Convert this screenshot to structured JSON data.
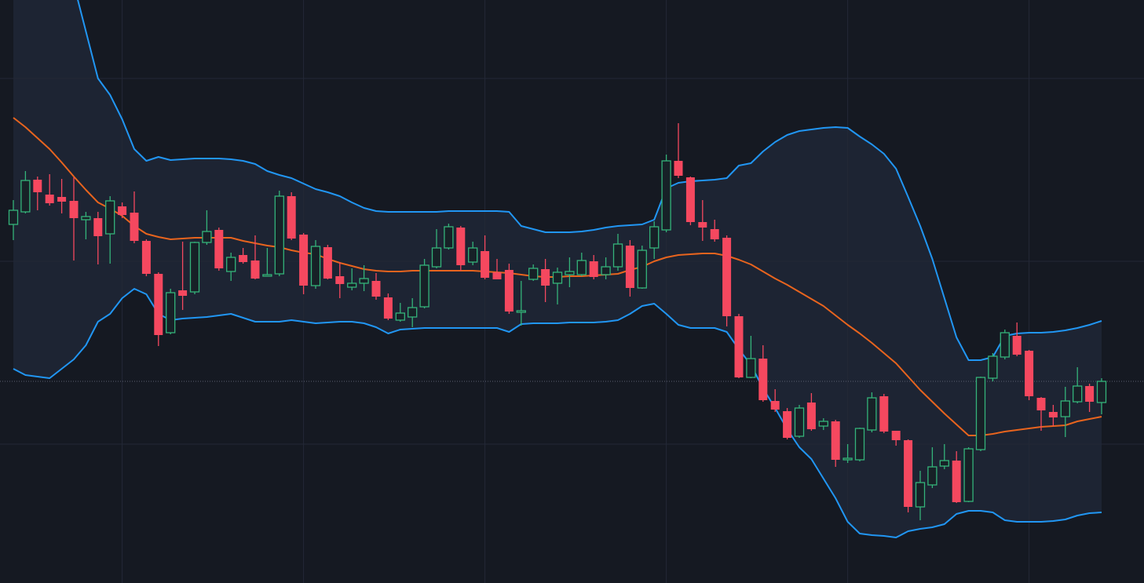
{
  "chart_data": {
    "type": "candlestick",
    "up_color": "#34b37a",
    "down_color": "#f5485f",
    "band_fill": "#1d2433",
    "grid": true,
    "ylim": [
      0,
      743
    ],
    "open": [
      457,
      473,
      514,
      495,
      492,
      487,
      463,
      465,
      445,
      480,
      472,
      436,
      394,
      319,
      373,
      371,
      434,
      450,
      397,
      418,
      411,
      391,
      394,
      493,
      444,
      379,
      428,
      391,
      377,
      382,
      385,
      364,
      335,
      339,
      352,
      403,
      427,
      453,
      409,
      423,
      396,
      399,
      345,
      387,
      400,
      382,
      393,
      393,
      410,
      393,
      403,
      430,
      376,
      427,
      450,
      538,
      517,
      460,
      451,
      440,
      340,
      262,
      286,
      232,
      219,
      187,
      230,
      200,
      206,
      157,
      157,
      195,
      238,
      194,
      182,
      97,
      125,
      149,
      156,
      104,
      170,
      261,
      288,
      315,
      296,
      236,
      218,
      212,
      231,
      251,
      230
    ],
    "high": [
      488,
      525,
      518,
      521,
      515,
      517,
      473,
      473,
      493,
      485,
      499,
      438,
      396,
      375,
      435,
      435,
      475,
      453,
      421,
      427,
      443,
      427,
      500,
      498,
      446,
      437,
      431,
      409,
      401,
      405,
      395,
      369,
      357,
      363,
      413,
      451,
      458,
      455,
      435,
      443,
      413,
      407,
      385,
      406,
      413,
      402,
      415,
      421,
      418,
      415,
      445,
      437,
      430,
      461,
      546,
      586,
      518,
      488,
      463,
      443,
      343,
      315,
      303,
      247,
      223,
      227,
      242,
      210,
      208,
      177,
      198,
      243,
      241,
      194,
      183,
      143,
      173,
      177,
      168,
      173,
      263,
      293,
      323,
      332,
      297,
      237,
      227,
      250,
      275,
      254,
      261
    ],
    "low": [
      437,
      471,
      475,
      481,
      471,
      411,
      438,
      406,
      407,
      465,
      433,
      391,
      302,
      317,
      348,
      368,
      431,
      398,
      385,
      407,
      387,
      391,
      391,
      437,
      368,
      375,
      387,
      363,
      373,
      372,
      361,
      335,
      333,
      326,
      350,
      401,
      425,
      398,
      405,
      387,
      387,
      343,
      328,
      385,
      358,
      355,
      377,
      391,
      387,
      387,
      398,
      365,
      375,
      413,
      447,
      516,
      456,
      436,
      435,
      327,
      261,
      261,
      231,
      218,
      183,
      185,
      194,
      195,
      148,
      153,
      155,
      192,
      191,
      175,
      90,
      80,
      121,
      145,
      102,
      103,
      168,
      257,
      285,
      289,
      233,
      194,
      200,
      186,
      229,
      218,
      215
    ],
    "close": [
      475,
      513,
      498,
      484,
      486,
      465,
      467,
      442,
      487,
      469,
      436,
      394,
      316,
      370,
      366,
      434,
      448,
      401,
      415,
      409,
      388,
      393,
      493,
      439,
      379,
      429,
      388,
      381,
      382,
      388,
      365,
      337,
      344,
      351,
      405,
      427,
      454,
      405,
      427,
      389,
      387,
      346,
      347,
      401,
      379,
      396,
      397,
      411,
      390,
      403,
      432,
      376,
      424,
      454,
      538,
      519,
      460,
      453,
      438,
      340,
      262,
      286,
      233,
      221,
      185,
      223,
      196,
      206,
      157,
      159,
      197,
      236,
      193,
      182,
      97,
      128,
      148,
      156,
      103,
      171,
      262,
      289,
      319,
      291,
      238,
      220,
      211,
      232,
      251,
      231,
      257
    ],
    "overlays": [
      {
        "color": "#2196f3",
        "values": [
          1043,
          1003,
          943,
          883,
          823,
          763,
          703,
          643,
          622,
          591,
          553,
          538,
          543,
          539,
          540,
          541,
          541,
          541,
          540,
          538,
          534,
          525,
          520,
          516,
          509,
          502,
          498,
          493,
          485,
          478,
          474,
          473,
          473,
          473,
          473,
          473,
          474,
          474,
          474,
          474,
          474,
          473,
          455,
          451,
          447,
          447,
          447,
          448,
          450,
          453,
          455,
          456,
          457,
          463,
          503,
          510,
          512,
          513,
          514,
          516,
          532,
          535,
          550,
          562,
          571,
          576,
          578,
          580,
          581,
          580,
          569,
          559,
          547,
          528,
          492,
          455,
          413,
          363,
          313,
          284,
          284,
          288,
          315,
          318,
          319,
          319,
          320,
          322,
          325,
          329,
          334
        ]
      },
      {
        "color": "#e8641e",
        "values": [
          593,
          581,
          567,
          553,
          536,
          518,
          501,
          485,
          477,
          468,
          455,
          445,
          441,
          438,
          439,
          440,
          440,
          440,
          440,
          436,
          433,
          430,
          428,
          424,
          421,
          419,
          413,
          408,
          404,
          400,
          398,
          397,
          397,
          398,
          398,
          398,
          398,
          398,
          398,
          397,
          396,
          395,
          393,
          391,
          390,
          390,
          391,
          391,
          392,
          393,
          394,
          399,
          403,
          410,
          415,
          418,
          419,
          420,
          420,
          417,
          412,
          406,
          397,
          388,
          380,
          371,
          362,
          353,
          341,
          329,
          318,
          306,
          293,
          280,
          263,
          246,
          231,
          216,
          202,
          188,
          188,
          190,
          193,
          195,
          197,
          199,
          200,
          201,
          206,
          209,
          212
        ]
      },
      {
        "color": "#2196f3",
        "values": [
          273,
          265,
          263,
          261,
          273,
          285,
          303,
          333,
          343,
          363,
          375,
          368,
          343,
          335,
          337,
          338,
          339,
          341,
          343,
          338,
          333,
          333,
          333,
          335,
          333,
          331,
          332,
          333,
          333,
          331,
          326,
          318,
          323,
          324,
          325,
          325,
          325,
          325,
          325,
          325,
          325,
          320,
          330,
          331,
          331,
          331,
          332,
          332,
          332,
          333,
          335,
          343,
          353,
          356,
          343,
          329,
          325,
          325,
          325,
          320,
          298,
          278,
          248,
          223,
          196,
          173,
          158,
          133,
          108,
          78,
          63,
          61,
          60,
          58,
          66,
          69,
          71,
          75,
          88,
          92,
          92,
          90,
          80,
          78,
          78,
          78,
          79,
          81,
          86,
          89,
          90
        ]
      }
    ]
  }
}
